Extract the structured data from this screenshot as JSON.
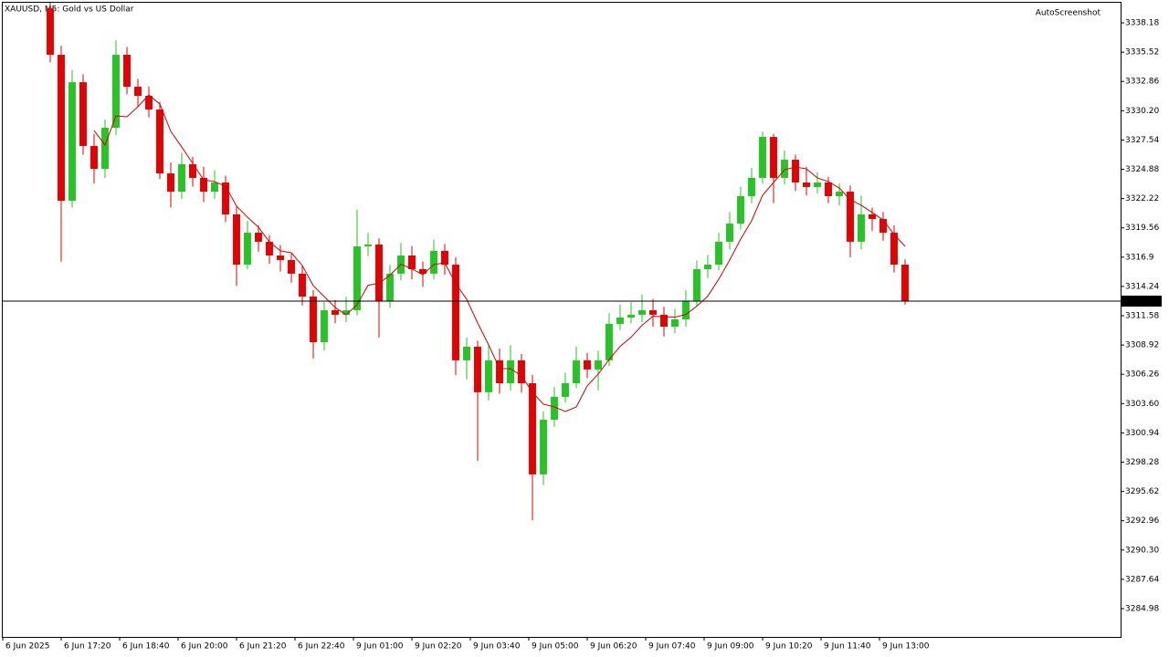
{
  "chart_data": {
    "type": "candlestick",
    "title": "XAUUSD, M5:  Gold vs US Dollar",
    "watermark": "AutoScreenshot",
    "x": [
      13,
      16,
      19,
      22,
      25,
      28,
      31,
      34,
      37,
      40,
      43,
      46,
      49,
      52,
      55,
      58,
      61,
      64,
      67,
      70,
      73,
      76,
      79,
      82,
      85,
      88,
      91,
      94,
      97,
      100,
      103,
      106,
      109,
      112,
      115,
      118,
      121,
      124,
      127,
      130,
      133,
      136,
      139,
      142,
      145,
      148,
      151,
      154,
      157,
      160,
      163,
      166,
      169,
      172,
      175,
      178,
      181,
      184,
      187,
      190,
      193,
      196,
      199,
      202,
      205,
      208,
      211,
      214,
      217,
      220,
      223,
      226,
      229,
      232,
      235,
      238,
      241,
      244,
      247
    ],
    "open": [
      3339.5,
      3335.28,
      3322.02,
      3332.79,
      3327.0,
      3324.92,
      3328.65,
      3335.28,
      3332.38,
      3331.55,
      3330.31,
      3324.51,
      3322.85,
      3325.34,
      3324.1,
      3322.85,
      3323.68,
      3320.78,
      3316.22,
      3319.12,
      3318.3,
      3317.05,
      3316.64,
      3315.4,
      3313.32,
      3309.18,
      3312.08,
      3311.67,
      3312.08,
      3317.88,
      3318.05,
      3312.91,
      3315.4,
      3317.05,
      3315.81,
      3315.4,
      3317.47,
      3316.22,
      3307.53,
      3308.77,
      3304.63,
      3307.53,
      3305.45,
      3307.53,
      3305.45,
      3297.17,
      3302.14,
      3304.21,
      3305.45,
      3307.53,
      3306.7,
      3307.53,
      3310.84,
      3311.42,
      3311.67,
      3312.08,
      3311.67,
      3310.59,
      3311.25,
      3312.91,
      3315.81,
      3316.22,
      3318.3,
      3319.95,
      3322.44,
      3324.1,
      3327.82,
      3324.1,
      3325.75,
      3323.68,
      3323.27,
      3323.68,
      3322.44,
      3322.85,
      3318.3,
      3320.78,
      3320.37,
      3319.12,
      3316.22
    ],
    "high": [
      3340.0,
      3336.1,
      3333.9,
      3333.5,
      3328.1,
      3329.4,
      3336.6,
      3336.0,
      3333.1,
      3332.4,
      3331.0,
      3325.5,
      3326.4,
      3326.0,
      3325.1,
      3324.8,
      3324.3,
      3321.5,
      3320.2,
      3319.8,
      3318.9,
      3318.0,
      3317.2,
      3316.1,
      3313.9,
      3312.8,
      3313.0,
      3313.3,
      3321.2,
      3319.1,
      3318.6,
      3316.2,
      3318.2,
      3317.9,
      3316.5,
      3318.5,
      3318.1,
      3316.9,
      3309.6,
      3309.3,
      3308.9,
      3308.6,
      3308.9,
      3308.1,
      3306.2,
      3302.9,
      3305.1,
      3306.4,
      3308.8,
      3308.2,
      3308.4,
      3311.8,
      3312.6,
      3312.8,
      3313.5,
      3313.1,
      3312.4,
      3312.2,
      3313.9,
      3316.6,
      3317.1,
      3319.1,
      3321.0,
      3323.3,
      3325.0,
      3328.3,
      3328.1,
      3326.6,
      3326.2,
      3325.1,
      3324.6,
      3324.2,
      3323.6,
      3323.4,
      3322.5,
      3321.4,
      3321.0,
      3319.8,
      3316.7
    ],
    "low": [
      3334.6,
      3316.5,
      3321.4,
      3326.2,
      3323.6,
      3324.1,
      3328.0,
      3331.7,
      3330.6,
      3329.6,
      3324.0,
      3321.4,
      3322.2,
      3323.3,
      3321.9,
      3322.2,
      3320.1,
      3314.3,
      3315.8,
      3317.4,
      3316.3,
      3315.6,
      3314.6,
      3312.5,
      3307.7,
      3308.4,
      3310.9,
      3311.0,
      3311.6,
      3317.0,
      3309.6,
      3312.3,
      3314.8,
      3314.9,
      3314.2,
      3314.9,
      3315.3,
      3306.2,
      3305.8,
      3298.4,
      3303.9,
      3304.5,
      3304.8,
      3304.6,
      3293.0,
      3296.2,
      3301.5,
      3303.7,
      3305.0,
      3305.9,
      3304.8,
      3307.0,
      3310.3,
      3310.9,
      3311.0,
      3310.6,
      3309.7,
      3310.0,
      3310.6,
      3312.4,
      3315.0,
      3315.7,
      3317.6,
      3319.4,
      3321.8,
      3323.6,
      3321.8,
      3323.5,
      3322.9,
      3322.5,
      3322.7,
      3321.8,
      3321.6,
      3316.9,
      3317.6,
      3319.3,
      3318.4,
      3315.5,
      3312.6
    ],
    "close": [
      3335.28,
      3322.02,
      3332.79,
      3327.0,
      3324.92,
      3328.65,
      3335.28,
      3332.38,
      3331.55,
      3330.31,
      3324.51,
      3322.85,
      3325.34,
      3324.1,
      3322.85,
      3323.68,
      3320.78,
      3316.22,
      3319.12,
      3318.3,
      3317.05,
      3316.64,
      3315.4,
      3313.32,
      3309.18,
      3312.08,
      3311.67,
      3312.08,
      3317.88,
      3318.05,
      3312.91,
      3315.4,
      3317.05,
      3315.81,
      3315.4,
      3317.47,
      3316.22,
      3307.53,
      3308.77,
      3304.63,
      3307.53,
      3305.45,
      3307.53,
      3305.45,
      3297.17,
      3302.14,
      3304.21,
      3305.45,
      3307.53,
      3306.7,
      3307.53,
      3310.84,
      3311.42,
      3311.67,
      3312.08,
      3311.67,
      3310.59,
      3311.25,
      3312.91,
      3315.81,
      3316.22,
      3318.3,
      3319.95,
      3322.44,
      3324.1,
      3327.82,
      3324.1,
      3325.75,
      3323.68,
      3323.27,
      3323.68,
      3322.44,
      3322.85,
      3318.3,
      3320.78,
      3320.37,
      3319.12,
      3316.22,
      3312.91
    ],
    "up_color": "#26c526",
    "down_color": "#e60000",
    "ma": {
      "color": "#d40000",
      "values": [
        null,
        null,
        null,
        null,
        3328.4,
        3327.08,
        3329.73,
        3329.65,
        3330.56,
        3331.63,
        3330.81,
        3328.32,
        3326.91,
        3325.42,
        3323.93,
        3323.76,
        3323.35,
        3321.53,
        3320.53,
        3319.62,
        3318.29,
        3317.47,
        3317.3,
        3316.14,
        3314.32,
        3313.32,
        3312.33,
        3311.67,
        3312.58,
        3314.35,
        3314.52,
        3315.26,
        3316.26,
        3315.84,
        3315.31,
        3316.23,
        3316.39,
        3314.49,
        3313.08,
        3310.92,
        3308.94,
        3306.78,
        3306.78,
        3306.12,
        3304.63,
        3303.55,
        3303.3,
        3302.88,
        3303.3,
        3305.21,
        3306.28,
        3307.61,
        3308.8,
        3309.63,
        3310.71,
        3311.54,
        3311.49,
        3311.45,
        3311.7,
        3312.45,
        3313.36,
        3314.9,
        3316.64,
        3318.54,
        3320.2,
        3322.52,
        3323.68,
        3324.84,
        3325.09,
        3324.92,
        3324.1,
        3323.76,
        3323.18,
        3322.11,
        3321.61,
        3320.95,
        3320.28,
        3318.96,
        3317.88
      ]
    },
    "last_price": 3312.91,
    "xlim": [
      0,
      306
    ],
    "ylim": [
      3282.41,
      3340.09
    ],
    "xticks": [
      {
        "value": 0,
        "label": "6 Jun 2025"
      },
      {
        "value": 16,
        "label": "6 Jun 17:20"
      },
      {
        "value": 32,
        "label": "6 Jun 18:40"
      },
      {
        "value": 48,
        "label": "6 Jun 20:00"
      },
      {
        "value": 64,
        "label": "6 Jun 21:20"
      },
      {
        "value": 80,
        "label": "6 Jun 22:40"
      },
      {
        "value": 96,
        "label": "9 Jun 01:00"
      },
      {
        "value": 112,
        "label": "9 Jun 02:20"
      },
      {
        "value": 128,
        "label": "9 Jun 03:40"
      },
      {
        "value": 144,
        "label": "9 Jun 05:00"
      },
      {
        "value": 160,
        "label": "9 Jun 06:20"
      },
      {
        "value": 176,
        "label": "9 Jun 07:40"
      },
      {
        "value": 192,
        "label": "9 Jun 09:00"
      },
      {
        "value": 208,
        "label": "9 Jun 10:20"
      },
      {
        "value": 224,
        "label": "9 Jun 11:40"
      },
      {
        "value": 240,
        "label": "9 Jun 13:00"
      }
    ],
    "yticks": [
      3338.18,
      3335.52,
      3332.86,
      {
        "value": 3330.2,
        "label": "3330.20"
      },
      3327.54,
      3324.88,
      3322.22,
      3319.56,
      3316.9,
      3314.24,
      3311.58,
      3308.92,
      3306.26,
      {
        "value": 3303.6,
        "label": "3303.60"
      },
      3300.94,
      3298.28,
      3295.62,
      3292.96,
      {
        "value": 3290.3,
        "label": "3290.30"
      },
      3287.64,
      3284.98
    ],
    "grid": false
  }
}
